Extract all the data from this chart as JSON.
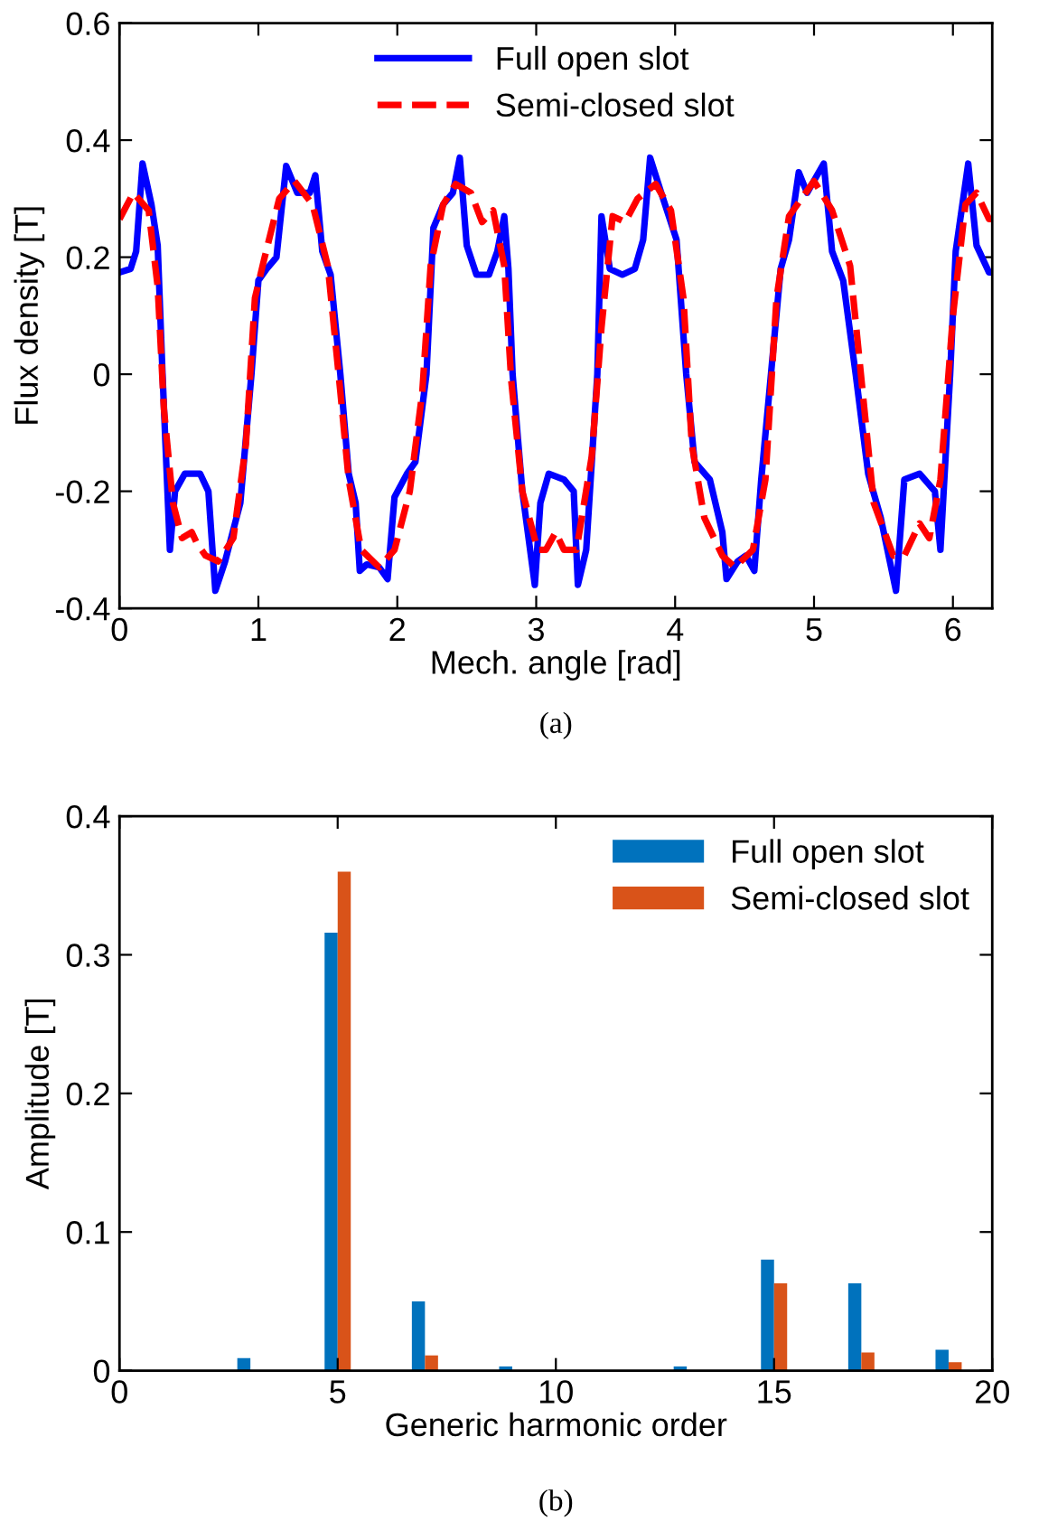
{
  "chart_data": [
    {
      "type": "line",
      "xlabel": "Mech. angle [rad]",
      "ylabel": "Flux density [T]",
      "annotations": [
        "(a)"
      ],
      "xlim": [
        0,
        6.283
      ],
      "ylim": [
        -0.4,
        0.6
      ],
      "xticks": [
        0,
        1,
        2,
        3,
        4,
        5,
        6
      ],
      "yticks": [
        -0.4,
        -0.2,
        0,
        0.2,
        0.4,
        0.6
      ],
      "legend": "top",
      "grid": false,
      "series": [
        {
          "name": "Full open slot",
          "color": "#0000ff",
          "line_style": "solid",
          "x": [
            0,
            0.08,
            0.12,
            0.166,
            0.23,
            0.275,
            0.31,
            0.363,
            0.4,
            0.47,
            0.58,
            0.64,
            0.69,
            0.76,
            0.87,
            0.95,
            1.0,
            1.06,
            1.13,
            1.2,
            1.28,
            1.37,
            1.41,
            1.46,
            1.52,
            1.59,
            1.65,
            1.7,
            1.73,
            1.78,
            1.87,
            1.93,
            1.98,
            2.07,
            2.13,
            2.21,
            2.26,
            2.33,
            2.4,
            2.45,
            2.5,
            2.57,
            2.66,
            2.72,
            2.77,
            2.8,
            2.83,
            2.9,
            2.99,
            3.03,
            3.09,
            3.2,
            3.27,
            3.3,
            3.36,
            3.44,
            3.47,
            3.53,
            3.62,
            3.71,
            3.77,
            3.82,
            3.9,
            4.01,
            4.08,
            4.14,
            4.25,
            4.34,
            4.37,
            4.45,
            4.51,
            4.57,
            4.62,
            4.69,
            4.76,
            4.82,
            4.89,
            4.95,
            5.07,
            5.13,
            5.21,
            5.3,
            5.39,
            5.48,
            5.59,
            5.65,
            5.76,
            5.87,
            5.91,
            5.98,
            6.02,
            6.11,
            6.17,
            6.26,
            6.283
          ],
          "values": [
            0.174,
            0.18,
            0.21,
            0.36,
            0.29,
            0.22,
            0,
            -0.3,
            -0.2,
            -0.17,
            -0.17,
            -0.2,
            -0.37,
            -0.32,
            -0.22,
            0,
            0.16,
            0.18,
            0.2,
            0.356,
            0.31,
            0.31,
            0.34,
            0.21,
            0.17,
            0,
            -0.17,
            -0.22,
            -0.336,
            -0.325,
            -0.33,
            -0.35,
            -0.21,
            -0.17,
            -0.15,
            0,
            0.25,
            0.29,
            0.31,
            0.37,
            0.22,
            0.17,
            0.17,
            0.21,
            0.27,
            0.18,
            0,
            -0.2,
            -0.36,
            -0.22,
            -0.17,
            -0.18,
            -0.2,
            -0.36,
            -0.3,
            0,
            0.27,
            0.18,
            0.17,
            0.18,
            0.23,
            0.37,
            0.31,
            0.23,
            0,
            -0.15,
            -0.18,
            -0.27,
            -0.35,
            -0.32,
            -0.31,
            -0.336,
            -0.18,
            0,
            0.18,
            0.23,
            0.345,
            0.31,
            0.36,
            0.21,
            0.16,
            0,
            -0.17,
            -0.245,
            -0.37,
            -0.18,
            -0.17,
            -0.2,
            -0.3,
            0,
            0.21,
            0.36,
            0.22,
            0.174,
            0.174
          ]
        },
        {
          "name": "Semi-closed slot",
          "color": "#ff0000",
          "line_style": "dashed",
          "x": [
            0,
            0.1,
            0.21,
            0.275,
            0.32,
            0.385,
            0.45,
            0.52,
            0.56,
            0.62,
            0.71,
            0.82,
            0.91,
            0.975,
            1.04,
            1.15,
            1.26,
            1.39,
            1.5,
            1.59,
            1.65,
            1.74,
            1.87,
            1.98,
            2.09,
            2.18,
            2.24,
            2.33,
            2.42,
            2.53,
            2.61,
            2.69,
            2.77,
            2.82,
            2.9,
            3.01,
            3.07,
            3.14,
            3.2,
            3.29,
            3.4,
            3.47,
            3.55,
            3.64,
            3.73,
            3.86,
            3.97,
            4.06,
            4.12,
            4.21,
            4.34,
            4.43,
            4.56,
            4.65,
            4.73,
            4.82,
            5.0,
            5.13,
            5.26,
            5.35,
            5.43,
            5.57,
            5.65,
            5.76,
            5.83,
            5.91,
            6.0,
            6.09,
            6.17,
            6.26,
            6.283
          ],
          "values": [
            0.265,
            0.31,
            0.28,
            0.15,
            -0.06,
            -0.22,
            -0.28,
            -0.27,
            -0.29,
            -0.31,
            -0.32,
            -0.28,
            -0.12,
            0.13,
            0.195,
            0.3,
            0.33,
            0.29,
            0.185,
            -0.03,
            -0.18,
            -0.3,
            -0.33,
            -0.3,
            -0.2,
            -0.03,
            0.185,
            0.29,
            0.325,
            0.31,
            0.26,
            0.28,
            0.185,
            -0.01,
            -0.2,
            -0.3,
            -0.3,
            -0.27,
            -0.3,
            -0.3,
            -0.14,
            0.08,
            0.27,
            0.26,
            0.3,
            0.325,
            0.28,
            0.13,
            -0.12,
            -0.245,
            -0.31,
            -0.33,
            -0.3,
            -0.18,
            0.13,
            0.27,
            0.33,
            0.28,
            0.185,
            -0.03,
            -0.22,
            -0.31,
            -0.31,
            -0.255,
            -0.28,
            -0.18,
            0.1,
            0.29,
            0.31,
            0.265,
            0.265
          ]
        }
      ]
    },
    {
      "type": "bar",
      "xlabel": "Generic harmonic order",
      "ylabel": "Amplitude [T]",
      "annotations": [
        "(b)"
      ],
      "xlim": [
        0,
        20
      ],
      "ylim": [
        0,
        0.4
      ],
      "xticks": [
        0,
        5,
        10,
        15,
        20
      ],
      "yticks": [
        0,
        0.1,
        0.2,
        0.3,
        0.4
      ],
      "legend": "top right",
      "grid": false,
      "x": [
        3,
        5,
        7,
        9,
        11,
        13,
        15,
        17,
        19
      ],
      "series": [
        {
          "name": "Full open slot",
          "color": "#0072bd",
          "values": [
            0.009,
            0.316,
            0.05,
            0.003,
            0,
            0.003,
            0.08,
            0.063,
            0.015
          ]
        },
        {
          "name": "Semi-closed slot",
          "color": "#d95319",
          "values": [
            0,
            0.36,
            0.011,
            null,
            0,
            0,
            0.063,
            0.013,
            0.006
          ]
        }
      ]
    }
  ]
}
